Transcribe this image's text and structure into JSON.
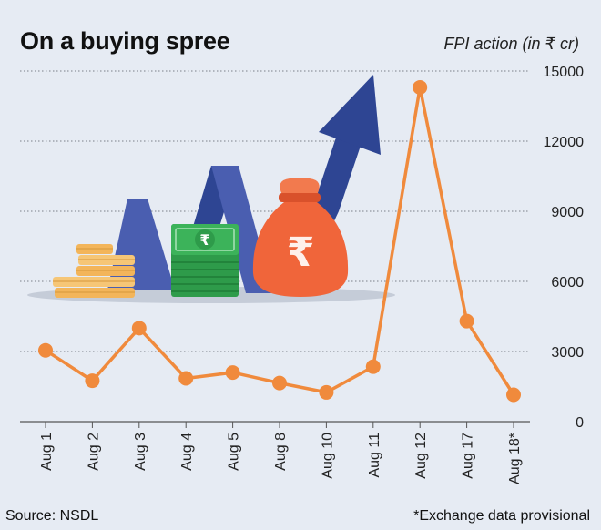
{
  "header": {
    "title": "On a buying spree",
    "unit_label": "FPI action (in ₹ cr)"
  },
  "footer": {
    "source": "Source: NSDL",
    "note": "*Exchange data provisional"
  },
  "illustration": {
    "icons": [
      "gold-coins-stack-icon",
      "banknote-bundle-icon",
      "rupee-money-bag-icon",
      "upward-arrow-icon"
    ],
    "note_symbol": "₹"
  },
  "colors": {
    "background": "#e6ebf3",
    "line": "#f08a3c",
    "grid": "#7a7f88",
    "arrow": "#2e4593",
    "bag": "#f0653a",
    "note": "#2e9b4a",
    "coins": "#f3b55a"
  },
  "chart_data": {
    "type": "line",
    "categories": [
      "Aug 1",
      "Aug 2",
      "Aug 3",
      "Aug 4",
      "Aug 5",
      "Aug 8",
      "Aug 10",
      "Aug 11",
      "Aug 12",
      "Aug 17",
      "Aug 18*"
    ],
    "values": [
      3050,
      1750,
      4000,
      1850,
      2100,
      1650,
      1250,
      2350,
      14300,
      4300,
      1150
    ],
    "ylim": [
      0,
      15000
    ],
    "yticks": [
      0,
      3000,
      6000,
      9000,
      12000,
      15000
    ],
    "ytick_labels": [
      "0",
      "3000",
      "6000",
      "9000",
      "12000",
      "15000"
    ],
    "grid": "horizontal-dotted",
    "y_axis_position": "right",
    "legend": "none"
  }
}
